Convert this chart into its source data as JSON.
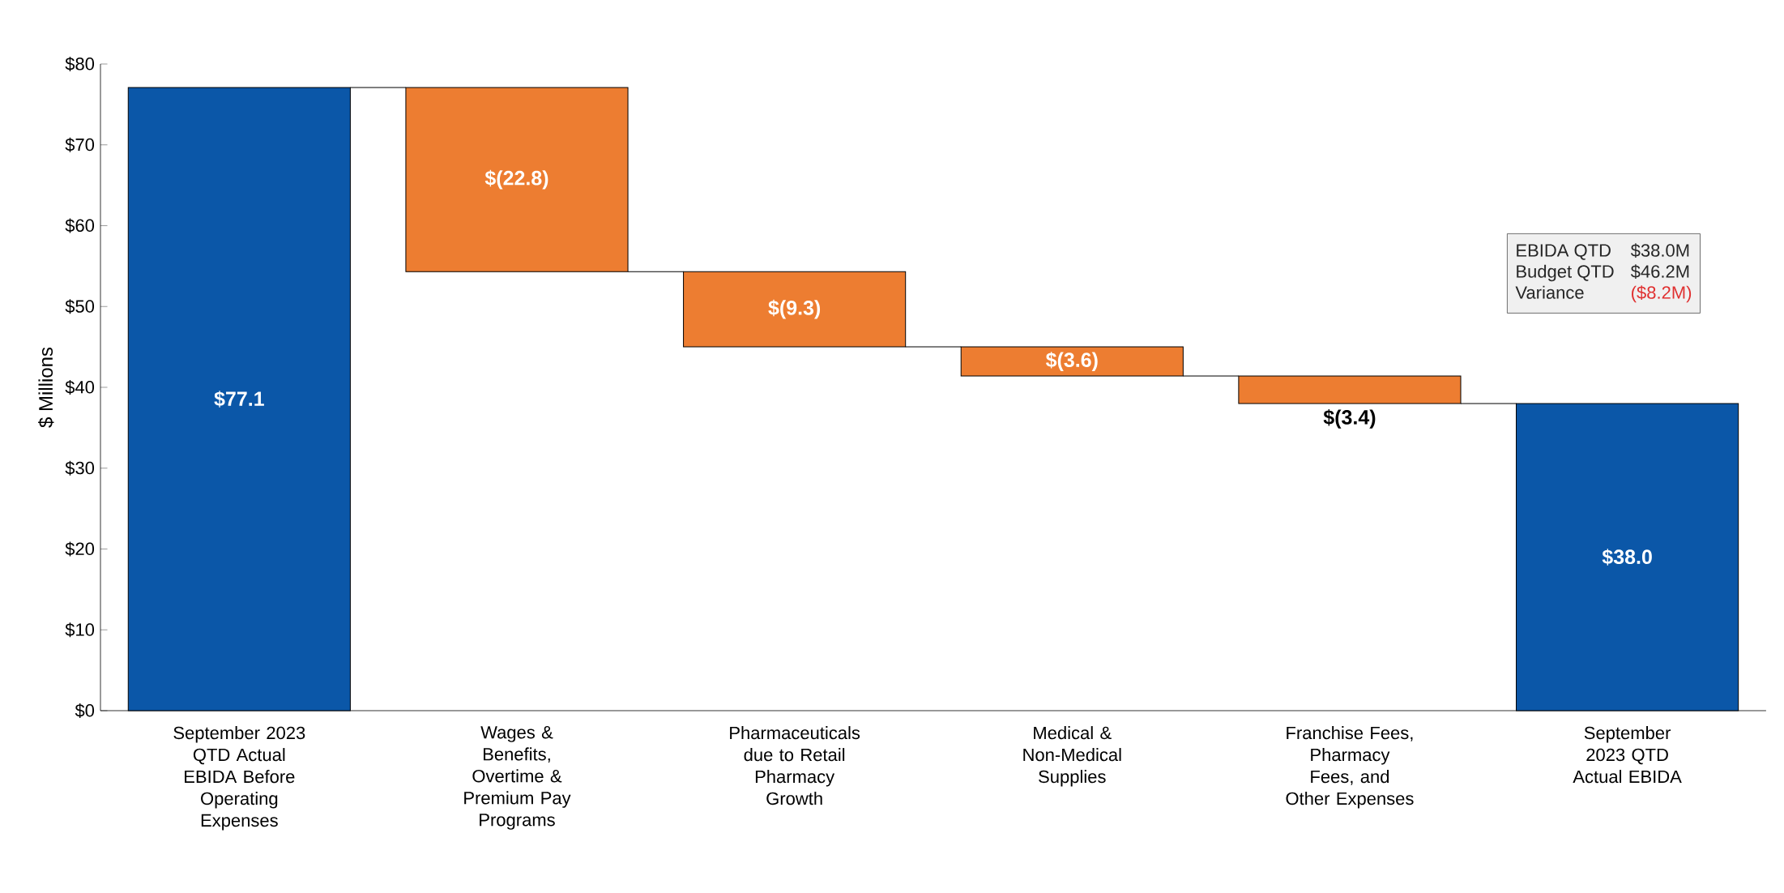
{
  "chart_data": {
    "type": "bar",
    "ylabel": "$ Millions",
    "categories": [
      "September 2023 QTD Actual EBIDA Before Operating Expenses",
      "Wages & Benefits, Overtime & Premium Pay Programs",
      "Pharmaceuticals due to Retail Pharmacy Growth",
      "Medical & Non-Medical Supplies",
      "Franchise Fees, Pharmacy Fees, and Other Expenses",
      "September 2023 QTD Actual EBIDA"
    ],
    "values": [
      77.1,
      -22.8,
      -9.3,
      -3.6,
      -3.4,
      38.0
    ],
    "base": [
      0,
      77.1,
      54.3,
      45.0,
      41.4,
      0
    ],
    "colors": [
      "#0b57a8",
      "#ed7d31",
      "#ed7d31",
      "#ed7d31",
      "#ed7d31",
      "#0b57a8"
    ],
    "value_labels": [
      "$77.1",
      "$(22.8)",
      "$(9.3)",
      "$(3.6)",
      "$(3.4)",
      "$38.0"
    ],
    "ylim": [
      0,
      80
    ],
    "yticks": [
      {
        "value": 0,
        "label": "$0"
      },
      {
        "value": 10,
        "label": "$10"
      },
      {
        "value": 20,
        "label": "$20"
      },
      {
        "value": 30,
        "label": "$30"
      },
      {
        "value": 40,
        "label": "$40"
      },
      {
        "value": 50,
        "label": "$50"
      },
      {
        "value": 60,
        "label": "$60"
      },
      {
        "value": 70,
        "label": "$70"
      },
      {
        "value": 80,
        "label": "$80"
      }
    ],
    "annotations": [
      "EBIDA QTD",
      "$38.0M",
      "Budget QTD",
      "$46.2M",
      "Variance",
      "($8.2M)"
    ]
  }
}
